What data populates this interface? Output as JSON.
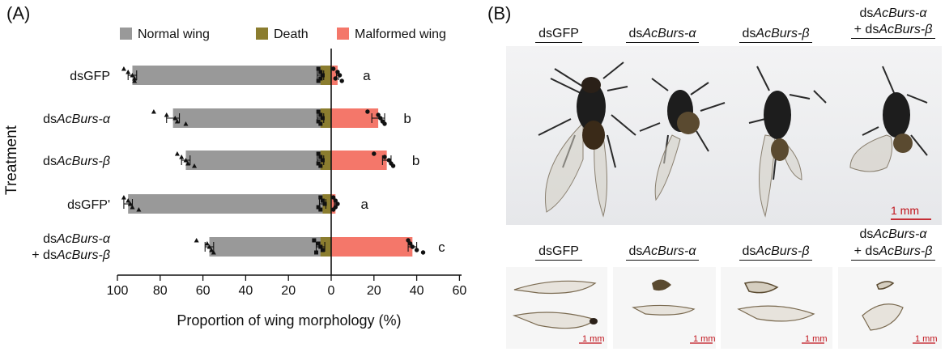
{
  "panel_a": {
    "label": "(A)",
    "chart_data": {
      "type": "bar",
      "orientation": "horizontal-diverging",
      "ylabel": "Treatment",
      "xlabel": "Proportion of wing morphology (%)",
      "xlim": [
        100,
        60
      ],
      "x_ticks": [
        "100",
        "80",
        "60",
        "40",
        "20",
        "0",
        "20",
        "40",
        "60"
      ],
      "legend": {
        "placement": "top",
        "entries": [
          "Normal wing",
          "Death",
          "Malformed wing"
        ]
      },
      "categories": [
        {
          "parts": [
            [
              "dsGFP",
              false
            ]
          ]
        },
        {
          "parts": [
            [
              "ds",
              false
            ],
            [
              "AcBurs-α",
              true
            ]
          ]
        },
        {
          "parts": [
            [
              "ds",
              false
            ],
            [
              "AcBurs-β",
              true
            ]
          ]
        },
        {
          "parts": [
            [
              "dsGFP'",
              false
            ]
          ]
        },
        {
          "parts": [
            [
              "ds",
              false
            ],
            [
              "AcBurs-α",
              true
            ]
          ],
          "line2": [
            [
              "+ ds",
              false
            ],
            [
              "AcBurs-β",
              true
            ]
          ]
        }
      ],
      "series": [
        {
          "name": "Normal wing",
          "color": "#999999",
          "side": "left",
          "values": [
            93,
            74,
            68,
            95,
            57
          ],
          "errors": [
            2,
            3,
            2,
            2,
            2
          ],
          "points": [
            [
              97,
              95,
              93,
              92,
              92
            ],
            [
              83,
              77,
              73,
              72,
              68
            ],
            [
              72,
              70,
              68,
              67,
              64
            ],
            [
              97,
              95,
              94,
              93,
              90
            ],
            [
              63,
              58,
              57,
              56,
              55
            ]
          ]
        },
        {
          "name": "Death",
          "color": "#8b7d2f",
          "side": "left",
          "values": [
            5,
            5,
            5,
            4,
            5
          ],
          "errors": [
            1.5,
            1.5,
            1.5,
            1.5,
            2
          ],
          "points": [
            [
              6,
              5,
              4,
              5,
              6
            ],
            [
              6,
              5,
              4,
              6,
              5
            ],
            [
              6,
              5,
              4,
              6,
              5
            ],
            [
              5,
              4,
              3,
              6,
              5
            ],
            [
              8,
              6,
              5,
              4,
              7
            ]
          ]
        },
        {
          "name": "Malformed wing",
          "color": "#f4776a",
          "side": "right",
          "values": [
            3,
            22,
            26,
            2,
            38
          ],
          "errors": [
            0.5,
            3,
            2,
            0.5,
            2
          ],
          "points": [
            [
              1,
              3,
              4,
              2,
              5
            ],
            [
              17,
              22,
              23,
              24,
              25
            ],
            [
              20,
              25,
              27,
              28,
              29
            ],
            [
              1,
              2,
              3,
              2,
              1
            ],
            [
              36,
              37,
              38,
              40,
              43
            ]
          ]
        }
      ],
      "significance": [
        "a",
        "b",
        "b",
        "a",
        "c"
      ]
    }
  },
  "panel_b": {
    "label": "(B)",
    "columns": [
      {
        "parts": [
          [
            "dsGFP",
            false
          ]
        ]
      },
      {
        "parts": [
          [
            "ds",
            false
          ],
          [
            "AcBurs-α",
            true
          ]
        ]
      },
      {
        "parts": [
          [
            "ds",
            false
          ],
          [
            "AcBurs-β",
            true
          ]
        ]
      },
      {
        "line1": [
          [
            "ds",
            false
          ],
          [
            "AcBurs-α",
            true
          ]
        ],
        "parts": [
          [
            "+ ds",
            false
          ],
          [
            "AcBurs-β",
            true
          ]
        ]
      }
    ],
    "scale_bar_large": "1 mm",
    "scale_bar_small": "1 mm"
  }
}
